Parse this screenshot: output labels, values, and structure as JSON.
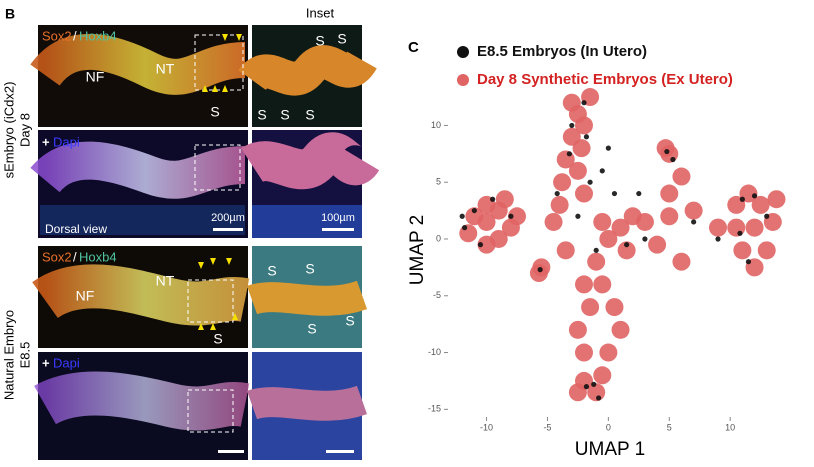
{
  "panel_b": {
    "label": "B",
    "inset_title": "Inset",
    "row_labels": [
      [
        "sEmbryo (iCdx2)",
        "Day 8"
      ],
      [
        "Natural Embryo",
        "E8.5"
      ]
    ],
    "images": [
      {
        "stain": [
          "Sox2",
          "/",
          "Hoxb4"
        ],
        "labels": [
          "NF",
          "NT",
          "S"
        ]
      },
      {
        "stain": [
          "+",
          "Dapi"
        ],
        "scale": "200µm",
        "view": "Dorsal view"
      },
      {
        "stain": [
          "Sox2",
          "/",
          "Hoxb4"
        ],
        "labels": [
          "NF",
          "NT",
          "S"
        ]
      },
      {
        "stain": [
          "+",
          "Dapi"
        ]
      }
    ],
    "insets": [
      {
        "labels": [
          "S",
          "S",
          "S",
          "S",
          "S"
        ]
      },
      {
        "scale": "100µm"
      },
      {
        "labels": [
          "S",
          "S",
          "S",
          "S"
        ]
      },
      {}
    ]
  },
  "chart_data": {
    "type": "scatter",
    "panel_label": "C",
    "xlabel": "UMAP 1",
    "ylabel": "UMAP 2",
    "xlim": [
      -13,
      14.5
    ],
    "ylim": [
      -15.5,
      14
    ],
    "xticks": [
      -10,
      -5,
      0,
      5,
      10
    ],
    "yticks": [
      10,
      5,
      0,
      -5,
      -10,
      -15
    ],
    "series": [
      {
        "name": "Day 8 Synthetic Embryos (Ex Utero)",
        "color": "#e06464",
        "label_color": "#d42222",
        "x": [
          -11,
          -10,
          -9,
          -8,
          -9,
          -10,
          -11.5,
          -8.5,
          -7.5,
          -10,
          -5.5,
          -5.7,
          -3,
          -2.5,
          -2,
          -3,
          -2.2,
          -3.5,
          -2.5,
          -3.8,
          -1.5,
          -2,
          -4,
          -4.5,
          -3.5,
          -1,
          -2,
          -1.5,
          -2.5,
          -2,
          -0.5,
          0.5,
          1,
          0,
          0,
          1,
          1.5,
          -0.5,
          2,
          -2,
          -1,
          -2.5,
          -0.5,
          3,
          5,
          7,
          9,
          4,
          6,
          5,
          6,
          5,
          4.7,
          10.5,
          11.5,
          12.5,
          13.5,
          13,
          12,
          11,
          10.5,
          12,
          13.8
        ],
        "y": [
          2,
          3,
          2.5,
          1,
          0,
          -0.5,
          0.5,
          3.5,
          2,
          1.5,
          -2.5,
          -3,
          12,
          11,
          10,
          9,
          8,
          7,
          6,
          5,
          12.5,
          4,
          3,
          1.5,
          -1,
          -2,
          -4,
          -6,
          -8,
          -10,
          -4,
          -6,
          -8,
          -10,
          0,
          1,
          -1,
          1.5,
          2,
          -12.5,
          -13.5,
          -13.5,
          -12,
          1.5,
          2,
          2.5,
          1,
          -0.5,
          -2,
          4,
          5.5,
          7.5,
          8,
          3,
          4,
          3,
          1.5,
          -1,
          -2.5,
          -1,
          1,
          1,
          3.5
        ]
      },
      {
        "name": "E8.5 Embryos (In Utero)",
        "color": "#111111",
        "label_color": "#111111",
        "x": [
          -11,
          -9.5,
          -8,
          -10.5,
          -11.8,
          -5.6,
          -2,
          -3,
          -1.8,
          -3.2,
          -1.5,
          -4.2,
          0,
          -0.5,
          0.5,
          -1,
          -1.8,
          -0.8,
          -1.2,
          1.5,
          3,
          7,
          9,
          11,
          12,
          13,
          11.5,
          10.8,
          4.8,
          5.3,
          -12,
          -2.5,
          2.5
        ],
        "y": [
          2.5,
          3.5,
          2,
          -0.5,
          1,
          -2.7,
          12,
          10,
          9,
          7.5,
          5,
          4,
          8,
          6,
          4,
          -1,
          -13,
          -14,
          -12.8,
          -0.5,
          0,
          1.5,
          0,
          3.5,
          3.8,
          2,
          -2,
          0.5,
          7.7,
          7,
          2,
          2,
          4
        ]
      }
    ]
  }
}
